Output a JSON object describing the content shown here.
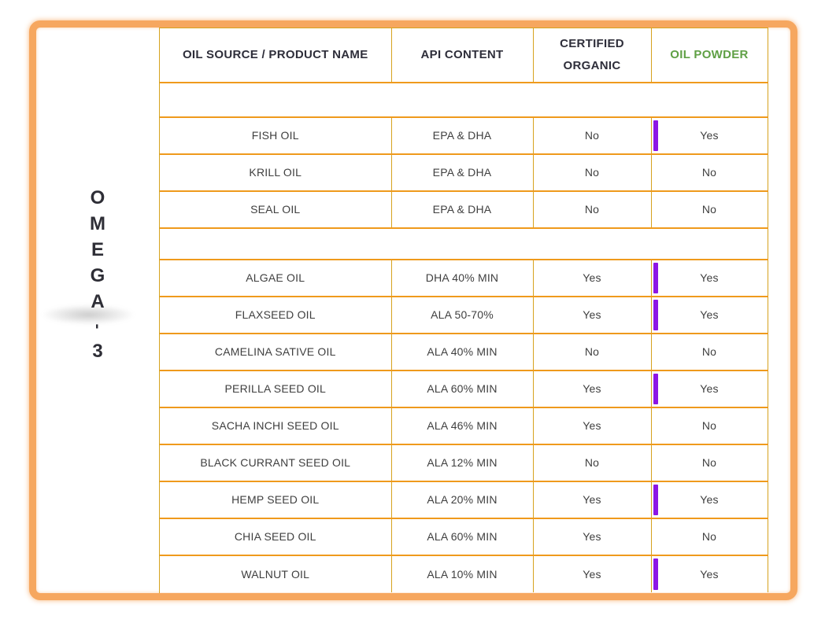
{
  "side_label": {
    "text": "OMEGA-3",
    "chars": [
      "O",
      "M",
      "E",
      "G",
      "A",
      "-",
      "3"
    ]
  },
  "colors": {
    "frame_orange": "#f6a75f",
    "border_gold": "#d6a21e",
    "border_orange": "#ef9a1c",
    "header_text": "#2e2e3a",
    "body_text": "#3f3f3f",
    "green_text": "#61a14e",
    "green_header": "#5fa045",
    "powder_bar_purple": "#8c16e6"
  },
  "table": {
    "columns": [
      {
        "label": "OIL SOURCE / PRODUCT NAME"
      },
      {
        "label": "API CONTENT"
      },
      {
        "label": "CERTIFIED ORGANIC"
      },
      {
        "label": "OIL POWDER",
        "color": "#5fa045"
      }
    ],
    "groups": [
      {
        "rows": [
          {
            "name": "FISH OIL",
            "api": "EPA & DHA",
            "organic": "No",
            "powder": "Yes",
            "bar": true
          },
          {
            "name": "KRILL OIL",
            "api": "EPA & DHA",
            "organic": "No",
            "powder": "No",
            "bar": false
          },
          {
            "name": "SEAL OIL",
            "api": "EPA & DHA",
            "organic": "No",
            "powder": "No",
            "bar": false
          }
        ]
      },
      {
        "rows": [
          {
            "name": "ALGAE OIL",
            "api": "DHA 40% MIN",
            "organic": "Yes",
            "powder": "Yes",
            "bar": true
          },
          {
            "name": "FLAXSEED OIL",
            "api": "ALA 50-70%",
            "organic": "Yes",
            "powder": "Yes",
            "bar": true
          },
          {
            "name": "CAMELINA SATIVE OIL",
            "api": "ALA 40% MIN",
            "organic": "No",
            "powder": "No",
            "bar": false
          },
          {
            "name": "PERILLA SEED OIL",
            "api": "ALA 60% MIN",
            "organic": "Yes",
            "powder": "Yes",
            "bar": true
          },
          {
            "name": "SACHA INCHI SEED OIL",
            "api": "ALA 46% MIN",
            "organic": "Yes",
            "powder": "No",
            "bar": false
          },
          {
            "name": "BLACK CURRANT SEED OIL",
            "api": "ALA 12% MIN",
            "organic": "No",
            "powder": "No",
            "bar": false
          },
          {
            "name": "HEMP SEED OIL",
            "api": "ALA 20% MIN",
            "organic": "Yes",
            "powder": "Yes",
            "bar": true
          },
          {
            "name": "CHIA SEED OIL",
            "api": "ALA 60% MIN",
            "organic": "Yes",
            "powder": "No",
            "bar": false
          },
          {
            "name": "WALNUT OIL",
            "api": "ALA 10% MIN",
            "organic": "Yes",
            "powder": "Yes",
            "bar": true
          }
        ]
      }
    ]
  }
}
